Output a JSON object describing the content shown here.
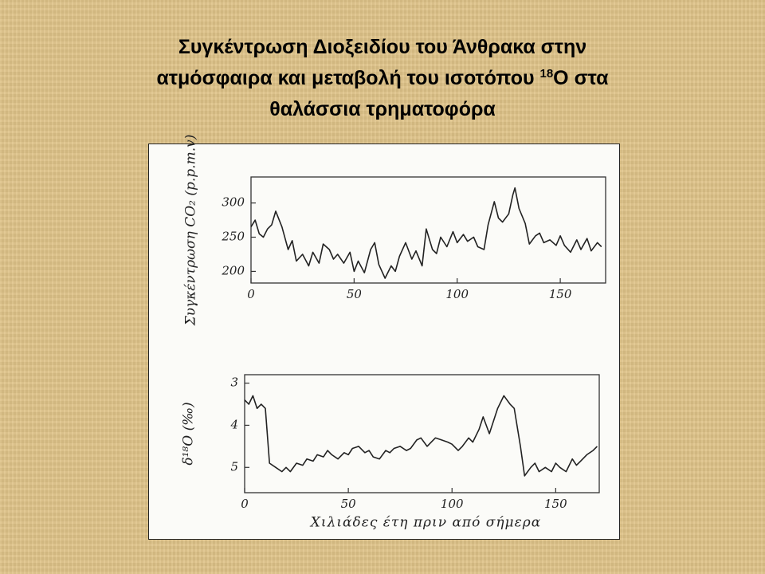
{
  "title": {
    "line1": "Συγκέντρωση Διοξειδίου του Άνθρακα στην",
    "line2": "ατμόσφαιρα και μεταβολή του ισοτόπου",
    "superscript": "18",
    "line2_end": "Ο στα",
    "line3": "θαλάσσια τρηματοφόρα"
  },
  "chart_data": [
    {
      "type": "line",
      "y_label": "Συγκέντρωση CO₂ (p.p.m.v)",
      "xlim": [
        0,
        172
      ],
      "xticks": [
        0,
        50,
        100,
        150
      ],
      "ylim": [
        183,
        338
      ],
      "yticks": [
        200,
        250,
        300
      ],
      "series": [
        {
          "name": "CO₂",
          "color": "#222",
          "x": [
            0,
            2,
            4,
            6,
            8,
            10,
            12,
            15,
            18,
            20,
            22,
            25,
            28,
            30,
            33,
            35,
            38,
            40,
            42,
            45,
            48,
            50,
            52,
            55,
            58,
            60,
            62,
            65,
            68,
            70,
            72,
            75,
            78,
            80,
            83,
            85,
            88,
            90,
            92,
            95,
            98,
            100,
            103,
            105,
            108,
            110,
            113,
            115,
            118,
            120,
            122,
            125,
            127,
            128,
            130,
            133,
            135,
            138,
            140,
            142,
            145,
            148,
            150,
            152,
            155,
            158,
            160,
            163,
            165,
            168,
            170
          ],
          "values": [
            265,
            275,
            255,
            250,
            262,
            268,
            288,
            265,
            232,
            245,
            215,
            225,
            208,
            228,
            212,
            240,
            232,
            218,
            225,
            212,
            228,
            200,
            215,
            198,
            232,
            242,
            210,
            190,
            208,
            200,
            222,
            242,
            218,
            230,
            208,
            262,
            232,
            226,
            250,
            236,
            258,
            242,
            254,
            244,
            250,
            236,
            232,
            268,
            302,
            278,
            272,
            284,
            312,
            322,
            292,
            270,
            240,
            252,
            256,
            242,
            246,
            238,
            252,
            238,
            228,
            246,
            232,
            248,
            230,
            242,
            236
          ]
        }
      ]
    },
    {
      "type": "line",
      "y_label": "δ¹⁸O (‰)",
      "x_label": "Χιλιάδες έτη πριν από σήμερα",
      "xlim": [
        0,
        171
      ],
      "xticks": [
        0,
        50,
        100,
        150
      ],
      "ylim": [
        2.8,
        5.6
      ],
      "y_inverted": true,
      "yticks": [
        3,
        4,
        5
      ],
      "series": [
        {
          "name": "δ¹⁸O",
          "color": "#222",
          "x": [
            0,
            2,
            4,
            6,
            8,
            10,
            12,
            15,
            18,
            20,
            22,
            25,
            28,
            30,
            33,
            35,
            38,
            40,
            42,
            45,
            48,
            50,
            52,
            55,
            58,
            60,
            62,
            65,
            68,
            70,
            72,
            75,
            78,
            80,
            83,
            85,
            88,
            90,
            92,
            95,
            98,
            100,
            103,
            105,
            108,
            110,
            113,
            115,
            118,
            120,
            122,
            125,
            128,
            130,
            133,
            135,
            138,
            140,
            142,
            145,
            148,
            150,
            152,
            155,
            158,
            160,
            162,
            165,
            168,
            170
          ],
          "values": [
            3.4,
            3.5,
            3.3,
            3.6,
            3.5,
            3.6,
            4.9,
            5.0,
            5.1,
            5.0,
            5.1,
            4.9,
            4.95,
            4.8,
            4.85,
            4.7,
            4.75,
            4.6,
            4.7,
            4.8,
            4.65,
            4.7,
            4.55,
            4.5,
            4.65,
            4.6,
            4.75,
            4.8,
            4.6,
            4.65,
            4.55,
            4.5,
            4.6,
            4.55,
            4.35,
            4.3,
            4.5,
            4.4,
            4.3,
            4.35,
            4.4,
            4.45,
            4.6,
            4.5,
            4.3,
            4.4,
            4.1,
            3.8,
            4.2,
            3.9,
            3.6,
            3.3,
            3.5,
            3.6,
            4.5,
            5.2,
            5.0,
            4.9,
            5.1,
            5.0,
            5.1,
            4.9,
            5.0,
            5.1,
            4.8,
            4.95,
            4.85,
            4.7,
            4.6,
            4.5
          ]
        }
      ]
    }
  ]
}
